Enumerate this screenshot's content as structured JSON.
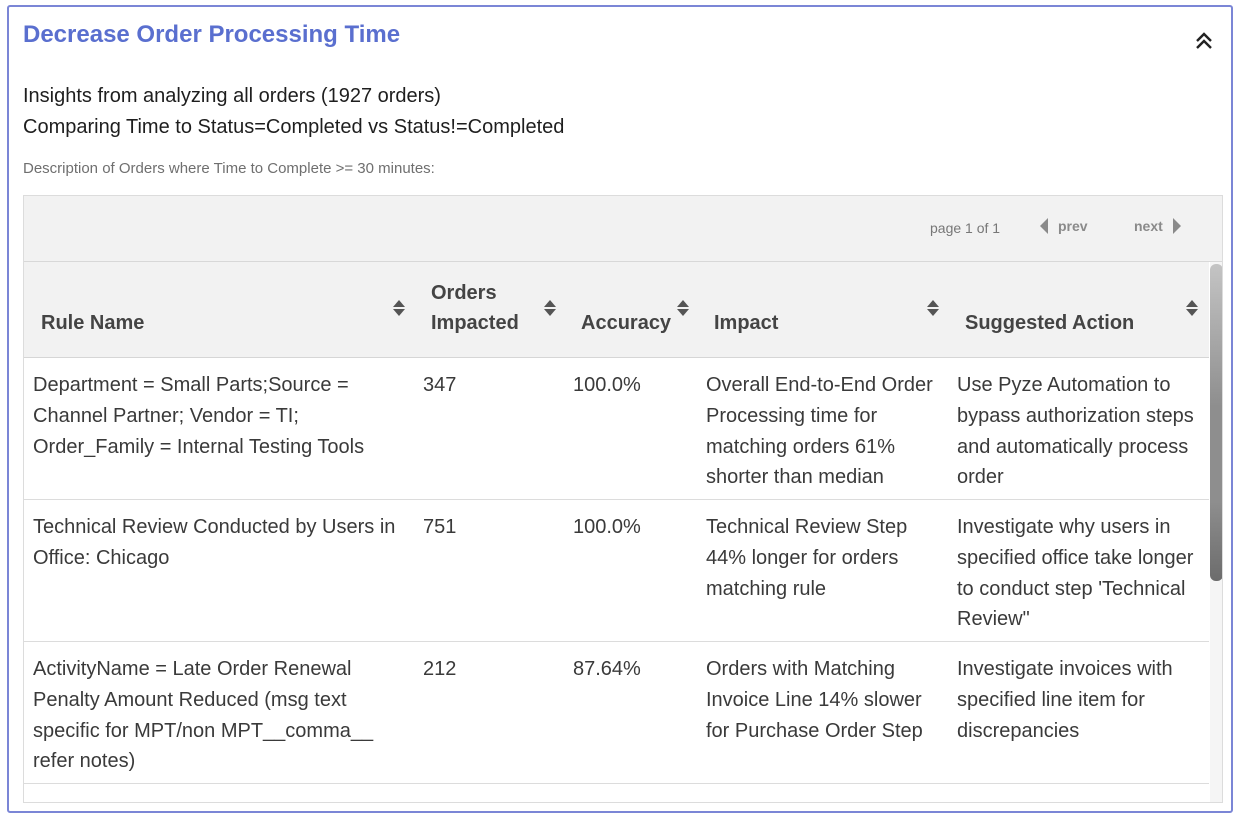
{
  "panel": {
    "title": "Decrease Order Processing Time",
    "collapse_icon": "chevron-double-up-icon",
    "insights": [
      "Insights from analyzing all orders (1927 orders)",
      "Comparing Time to Status=Completed vs Status!=Completed"
    ],
    "description": "Description of Orders where Time to Complete >= 30 minutes:"
  },
  "pager": {
    "page_text": "page 1 of 1",
    "prev_label": "prev",
    "next_label": "next"
  },
  "table": {
    "columns": [
      "Rule Name",
      "Orders Impacted",
      "Accuracy",
      "Impact",
      "Suggested Action"
    ],
    "columns_split": {
      "orders_impacted_line1": "Orders",
      "orders_impacted_line2": "Impacted"
    },
    "rows": [
      {
        "rule_name": "Department = Small Parts;Source = Channel Partner; Vendor = TI; Order_Family = Internal Testing Tools",
        "orders_impacted": "347",
        "accuracy": "100.0%",
        "impact": "Overall End-to-End Order Processing time for matching orders 61% shorter than median",
        "suggested_action": "Use Pyze Automation to bypass authorization steps and automatically process order"
      },
      {
        "rule_name": "Technical Review Conducted by Users in Office: Chicago",
        "orders_impacted": "751",
        "accuracy": "100.0%",
        "impact": "Technical Review Step 44% longer for orders matching rule",
        "suggested_action": "Investigate why users in specified office take longer to conduct step 'Technical Review\""
      },
      {
        "rule_name": "ActivityName = Late Order Renewal Penalty Amount Reduced (msg text specific for MPT/non MPT__comma__ refer notes)",
        "orders_impacted": "212",
        "accuracy": "87.64%",
        "impact": "Orders with Matching Invoice Line 14% slower for Purchase Order Step",
        "suggested_action": "Investigate invoices with specified line item for discrepancies"
      }
    ]
  },
  "colors": {
    "title": "#5a6fcf",
    "panel_border": "#7b86d6",
    "header_bg": "#f2f2f2"
  }
}
